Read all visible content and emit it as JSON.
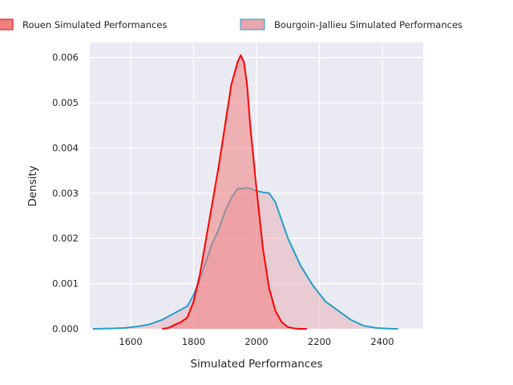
{
  "chart_data": {
    "type": "area",
    "title": "",
    "xlabel": "Simulated Performances",
    "ylabel": "Density",
    "xlim": [
      1470,
      2530
    ],
    "ylim": [
      0,
      0.00633
    ],
    "x_ticks": [
      "1600",
      "1800",
      "2000",
      "2200",
      "2400"
    ],
    "x_tick_values": [
      1600,
      1800,
      2000,
      2200,
      2400
    ],
    "y_ticks": [
      "0.000",
      "0.001",
      "0.002",
      "0.003",
      "0.004",
      "0.005",
      "0.006"
    ],
    "y_tick_values": [
      0,
      0.001,
      0.002,
      0.003,
      0.004,
      0.005,
      0.006
    ],
    "grid": true,
    "legend_position": "top",
    "series": [
      {
        "name": "Rouen Simulated Performances",
        "line_color": "#ff0000",
        "fill_color": "#f08080",
        "x": [
          1700,
          1720,
          1740,
          1760,
          1780,
          1800,
          1820,
          1840,
          1860,
          1880,
          1900,
          1920,
          1940,
          1950,
          1960,
          1970,
          1980,
          2000,
          2020,
          2040,
          2060,
          2080,
          2100,
          2120,
          2140,
          2160
        ],
        "y": [
          0.0,
          2e-05,
          9e-05,
          0.00015,
          0.00025,
          0.0006,
          0.0012,
          0.002,
          0.0028,
          0.0036,
          0.0045,
          0.0054,
          0.0059,
          0.00605,
          0.0059,
          0.0054,
          0.0045,
          0.0031,
          0.0018,
          0.0009,
          0.0004,
          0.00015,
          4e-05,
          1e-05,
          0.0,
          0.0
        ]
      },
      {
        "name": "Bourgoin-Jallieu Simulated Performances",
        "line_color": "#1fa0c8",
        "fill_color": "#e8a6ad",
        "x": [
          1480,
          1500,
          1540,
          1580,
          1620,
          1660,
          1700,
          1740,
          1780,
          1800,
          1820,
          1840,
          1860,
          1880,
          1900,
          1920,
          1940,
          1960,
          1970,
          1980,
          2000,
          2020,
          2040,
          2060,
          2080,
          2100,
          2140,
          2180,
          2220,
          2260,
          2300,
          2340,
          2380,
          2420,
          2450
        ],
        "y": [
          0.0,
          2e-06,
          1e-05,
          2e-05,
          5e-05,
          0.0001,
          0.0002,
          0.00035,
          0.0005,
          0.00075,
          0.0011,
          0.0015,
          0.0019,
          0.0022,
          0.0026,
          0.0029,
          0.0031,
          0.0031,
          0.00312,
          0.0031,
          0.00305,
          0.00302,
          0.003,
          0.0028,
          0.0024,
          0.002,
          0.0014,
          0.00095,
          0.0006,
          0.0004,
          0.0002,
          7e-05,
          2e-05,
          5e-06,
          0.0
        ]
      }
    ]
  }
}
